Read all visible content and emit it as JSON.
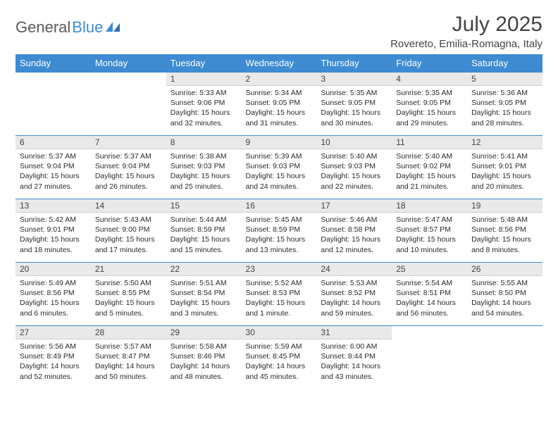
{
  "brand": {
    "name1": "General",
    "name2": "Blue"
  },
  "title": "July 2025",
  "location": "Rovereto, Emilia-Romagna, Italy",
  "colors": {
    "accent": "#3e8bd1",
    "header_text": "#ffffff",
    "daynum_bg": "#e9e9e9",
    "text": "#434343",
    "body_text": "#2b2b2b",
    "logo_gray": "#5a5a5a"
  },
  "weekdays": [
    "Sunday",
    "Monday",
    "Tuesday",
    "Wednesday",
    "Thursday",
    "Friday",
    "Saturday"
  ],
  "weeks": [
    [
      null,
      null,
      {
        "n": 1,
        "sunrise": "5:33 AM",
        "sunset": "9:06 PM",
        "daylight": "15 hours and 32 minutes."
      },
      {
        "n": 2,
        "sunrise": "5:34 AM",
        "sunset": "9:05 PM",
        "daylight": "15 hours and 31 minutes."
      },
      {
        "n": 3,
        "sunrise": "5:35 AM",
        "sunset": "9:05 PM",
        "daylight": "15 hours and 30 minutes."
      },
      {
        "n": 4,
        "sunrise": "5:35 AM",
        "sunset": "9:05 PM",
        "daylight": "15 hours and 29 minutes."
      },
      {
        "n": 5,
        "sunrise": "5:36 AM",
        "sunset": "9:05 PM",
        "daylight": "15 hours and 28 minutes."
      }
    ],
    [
      {
        "n": 6,
        "sunrise": "5:37 AM",
        "sunset": "9:04 PM",
        "daylight": "15 hours and 27 minutes."
      },
      {
        "n": 7,
        "sunrise": "5:37 AM",
        "sunset": "9:04 PM",
        "daylight": "15 hours and 26 minutes."
      },
      {
        "n": 8,
        "sunrise": "5:38 AM",
        "sunset": "9:03 PM",
        "daylight": "15 hours and 25 minutes."
      },
      {
        "n": 9,
        "sunrise": "5:39 AM",
        "sunset": "9:03 PM",
        "daylight": "15 hours and 24 minutes."
      },
      {
        "n": 10,
        "sunrise": "5:40 AM",
        "sunset": "9:03 PM",
        "daylight": "15 hours and 22 minutes."
      },
      {
        "n": 11,
        "sunrise": "5:40 AM",
        "sunset": "9:02 PM",
        "daylight": "15 hours and 21 minutes."
      },
      {
        "n": 12,
        "sunrise": "5:41 AM",
        "sunset": "9:01 PM",
        "daylight": "15 hours and 20 minutes."
      }
    ],
    [
      {
        "n": 13,
        "sunrise": "5:42 AM",
        "sunset": "9:01 PM",
        "daylight": "15 hours and 18 minutes."
      },
      {
        "n": 14,
        "sunrise": "5:43 AM",
        "sunset": "9:00 PM",
        "daylight": "15 hours and 17 minutes."
      },
      {
        "n": 15,
        "sunrise": "5:44 AM",
        "sunset": "8:59 PM",
        "daylight": "15 hours and 15 minutes."
      },
      {
        "n": 16,
        "sunrise": "5:45 AM",
        "sunset": "8:59 PM",
        "daylight": "15 hours and 13 minutes."
      },
      {
        "n": 17,
        "sunrise": "5:46 AM",
        "sunset": "8:58 PM",
        "daylight": "15 hours and 12 minutes."
      },
      {
        "n": 18,
        "sunrise": "5:47 AM",
        "sunset": "8:57 PM",
        "daylight": "15 hours and 10 minutes."
      },
      {
        "n": 19,
        "sunrise": "5:48 AM",
        "sunset": "8:56 PM",
        "daylight": "15 hours and 8 minutes."
      }
    ],
    [
      {
        "n": 20,
        "sunrise": "5:49 AM",
        "sunset": "8:56 PM",
        "daylight": "15 hours and 6 minutes."
      },
      {
        "n": 21,
        "sunrise": "5:50 AM",
        "sunset": "8:55 PM",
        "daylight": "15 hours and 5 minutes."
      },
      {
        "n": 22,
        "sunrise": "5:51 AM",
        "sunset": "8:54 PM",
        "daylight": "15 hours and 3 minutes."
      },
      {
        "n": 23,
        "sunrise": "5:52 AM",
        "sunset": "8:53 PM",
        "daylight": "15 hours and 1 minute."
      },
      {
        "n": 24,
        "sunrise": "5:53 AM",
        "sunset": "8:52 PM",
        "daylight": "14 hours and 59 minutes."
      },
      {
        "n": 25,
        "sunrise": "5:54 AM",
        "sunset": "8:51 PM",
        "daylight": "14 hours and 56 minutes."
      },
      {
        "n": 26,
        "sunrise": "5:55 AM",
        "sunset": "8:50 PM",
        "daylight": "14 hours and 54 minutes."
      }
    ],
    [
      {
        "n": 27,
        "sunrise": "5:56 AM",
        "sunset": "8:49 PM",
        "daylight": "14 hours and 52 minutes."
      },
      {
        "n": 28,
        "sunrise": "5:57 AM",
        "sunset": "8:47 PM",
        "daylight": "14 hours and 50 minutes."
      },
      {
        "n": 29,
        "sunrise": "5:58 AM",
        "sunset": "8:46 PM",
        "daylight": "14 hours and 48 minutes."
      },
      {
        "n": 30,
        "sunrise": "5:59 AM",
        "sunset": "8:45 PM",
        "daylight": "14 hours and 45 minutes."
      },
      {
        "n": 31,
        "sunrise": "6:00 AM",
        "sunset": "8:44 PM",
        "daylight": "14 hours and 43 minutes."
      },
      null,
      null
    ]
  ],
  "labels": {
    "sunrise_prefix": "Sunrise: ",
    "sunset_prefix": "Sunset: ",
    "daylight_prefix": "Daylight: "
  }
}
